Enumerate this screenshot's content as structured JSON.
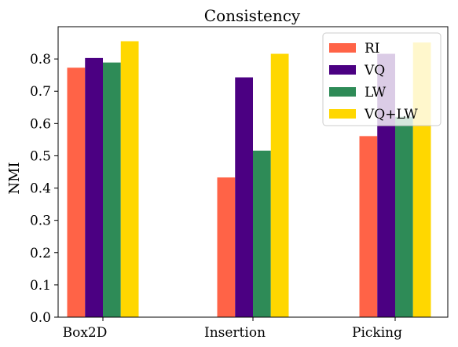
{
  "chart_data": {
    "type": "bar",
    "title": "Consistency",
    "xlabel": "",
    "ylabel": "NMI",
    "categories": [
      "Box2D",
      "Insertion",
      "Picking"
    ],
    "series": [
      {
        "name": "RI",
        "color": "#ff6347",
        "values": [
          0.773,
          0.433,
          0.561
        ]
      },
      {
        "name": "VQ",
        "color": "#4b0082",
        "values": [
          0.803,
          0.743,
          0.816
        ]
      },
      {
        "name": "LW",
        "color": "#2e8b57",
        "values": [
          0.789,
          0.516,
          0.621
        ]
      },
      {
        "name": "VQ+LW",
        "color": "#ffd700",
        "values": [
          0.855,
          0.816,
          0.851
        ]
      }
    ],
    "ylim": [
      0,
      0.9
    ],
    "yticks": [
      "0.0",
      "0.1",
      "0.2",
      "0.3",
      "0.4",
      "0.5",
      "0.6",
      "0.7",
      "0.8"
    ],
    "grid": false,
    "legend": "top-right"
  }
}
